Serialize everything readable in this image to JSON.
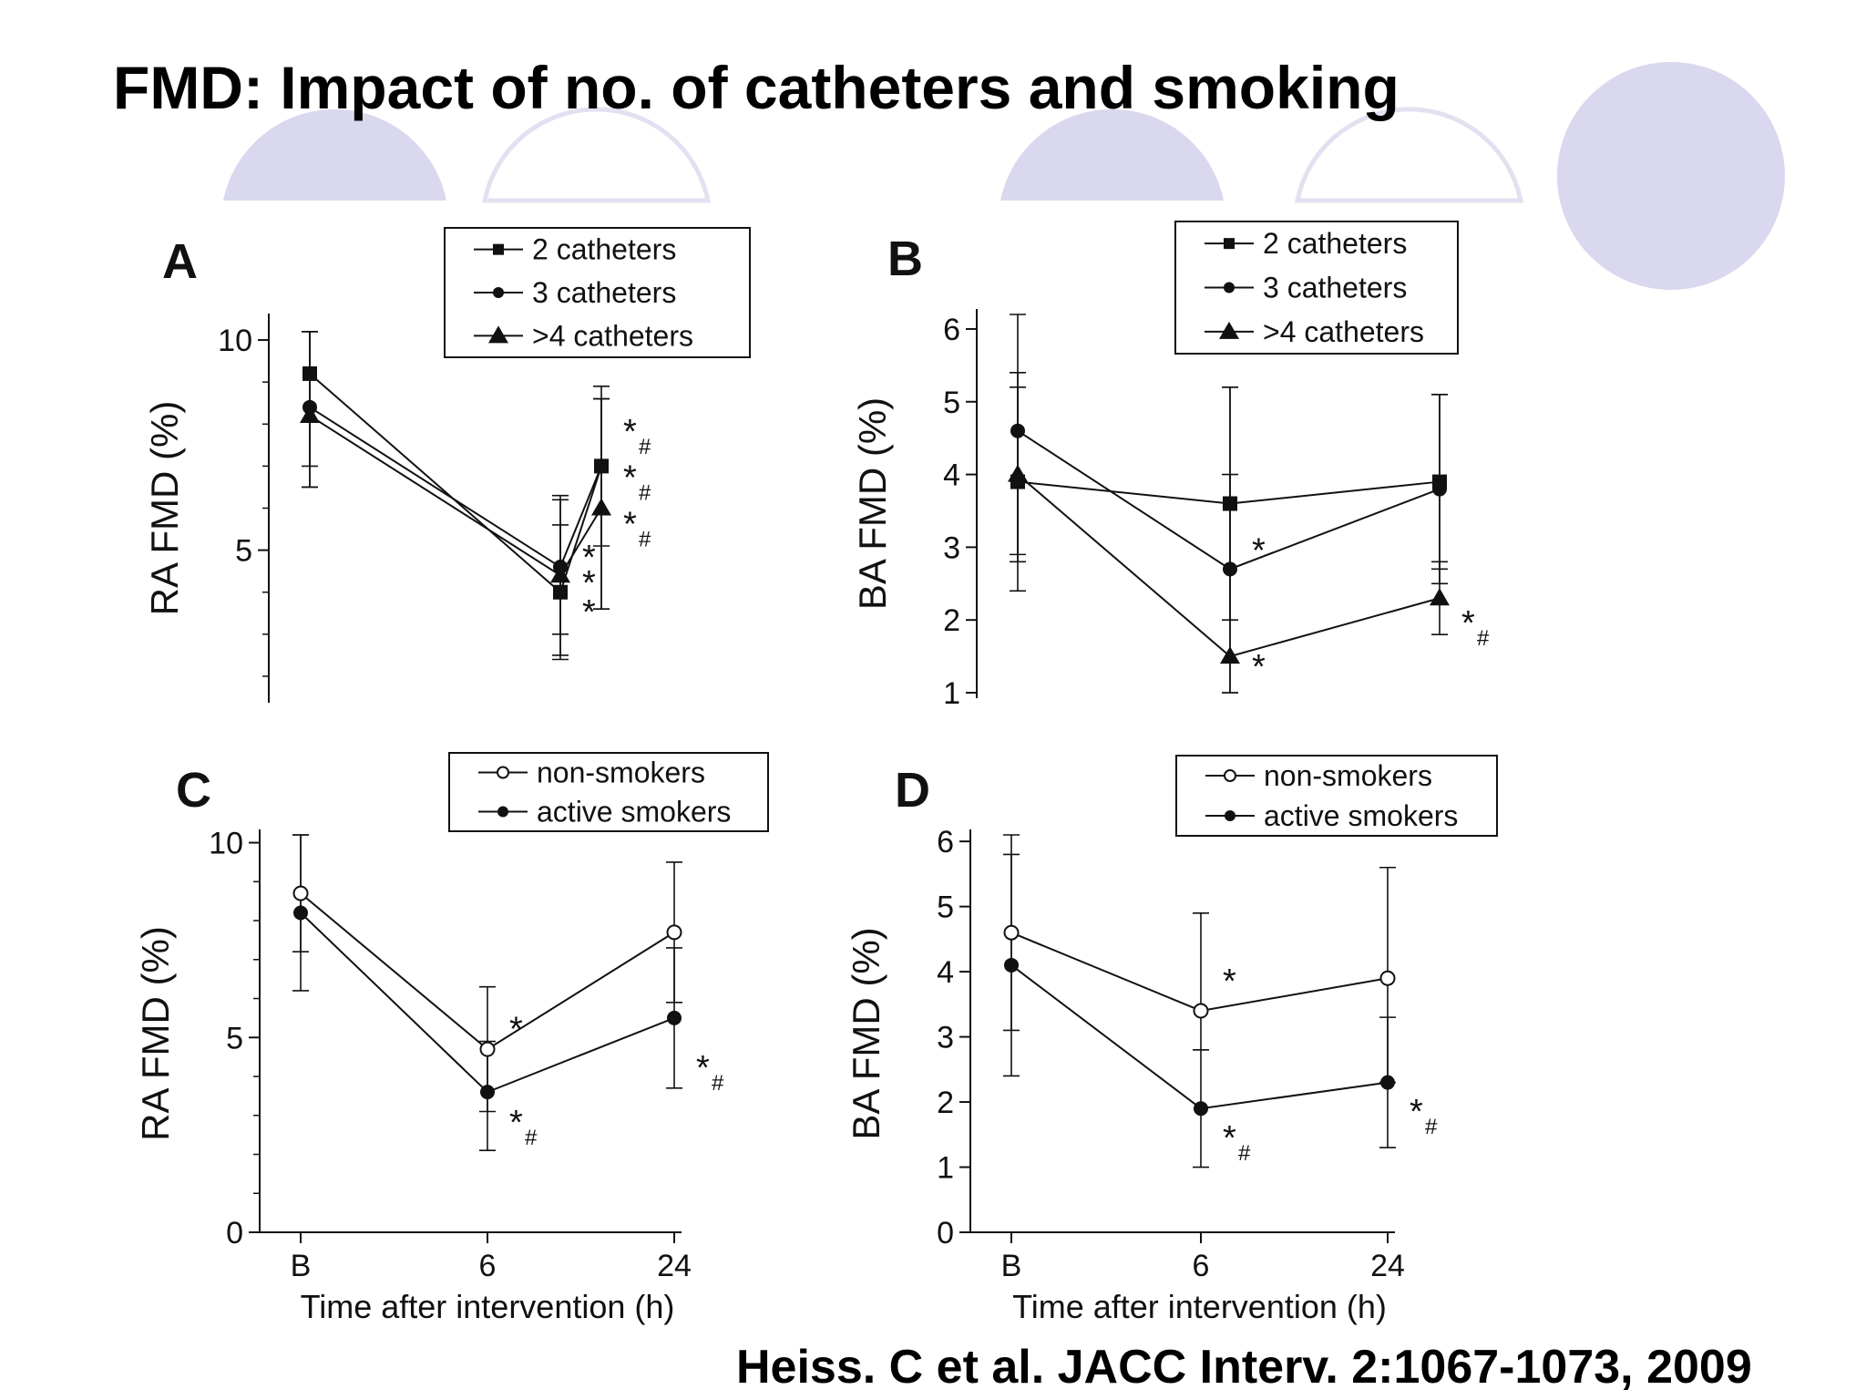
{
  "title": "FMD: Impact of no. of catheters and smoking",
  "citation": "Heiss. C et al. JACC Interv. 2:1067-1073, 2009",
  "colors": {
    "decor_circle": "#d9d8ee",
    "decor_outline": "#e5e4f3",
    "ink": "#111111"
  },
  "chart_data": [
    {
      "id": "A",
      "panel_label": "A",
      "type": "line",
      "xlabel": "",
      "ylabel": "RA FMD (%)",
      "categories": [
        "B",
        "6",
        "24"
      ],
      "show_x_ticklabels": false,
      "ylim": [
        1.5,
        10.5
      ],
      "yticks": [
        5,
        10
      ],
      "ytick_labels": [
        "5",
        "10"
      ],
      "minor_yticks": [
        2,
        3,
        4,
        6,
        7,
        8,
        9
      ],
      "legend": [
        "2 catheters",
        "3 catheters",
        ">4 catheters"
      ],
      "series": [
        {
          "name": "2 catheters",
          "marker": "square",
          "values": [
            9.2,
            4.0,
            7.0
          ],
          "err_low": [
            6.5,
            2.4,
            3.6
          ],
          "err_high": [
            10.2,
            6.2,
            8.9
          ]
        },
        {
          "name": "3 catheters",
          "marker": "circle",
          "values": [
            8.4,
            4.6,
            7.0
          ],
          "err_low": [
            7.0,
            3.0,
            5.1
          ],
          "err_high": [
            10.2,
            5.6,
            8.6
          ]
        },
        {
          "name": ">4 catheters",
          "marker": "triangle",
          "values": [
            8.2,
            4.4,
            6.0
          ],
          "err_low": [
            6.5,
            2.5,
            3.6
          ],
          "err_high": [
            10.2,
            6.3,
            8.6
          ]
        }
      ],
      "annotations": [
        {
          "x": "6",
          "y": 4.9,
          "text": "*"
        },
        {
          "x": "6",
          "y": 4.3,
          "text": "*"
        },
        {
          "x": "6",
          "y": 3.6,
          "text": "*"
        },
        {
          "x": "24",
          "y": 7.9,
          "text": "*",
          "sub": "#"
        },
        {
          "x": "24",
          "y": 6.8,
          "text": "*",
          "sub": "#"
        },
        {
          "x": "24",
          "y": 5.7,
          "text": "*",
          "sub": "#"
        }
      ]
    },
    {
      "id": "B",
      "panel_label": "B",
      "type": "line",
      "xlabel": "",
      "ylabel": "BA FMD (%)",
      "categories": [
        "B",
        "6",
        "24"
      ],
      "show_x_ticklabels": false,
      "ylim": [
        1,
        6.2
      ],
      "yticks": [
        1,
        2,
        3,
        4,
        5,
        6
      ],
      "ytick_labels": [
        "1",
        "2",
        "3",
        "4",
        "5",
        "6"
      ],
      "minor_yticks": [],
      "legend": [
        "2 catheters",
        "3 catheters",
        ">4 catheters"
      ],
      "series": [
        {
          "name": "2 catheters",
          "marker": "square",
          "values": [
            3.9,
            3.6,
            3.9
          ],
          "err_low": [
            2.8,
            2.0,
            2.7
          ],
          "err_high": [
            5.4,
            4.0,
            5.1
          ]
        },
        {
          "name": "3 catheters",
          "marker": "circle",
          "values": [
            4.6,
            2.7,
            3.8
          ],
          "err_low": [
            2.4,
            1.0,
            2.5
          ],
          "err_high": [
            6.2,
            5.2,
            5.1
          ]
        },
        {
          "name": ">4 catheters",
          "marker": "triangle",
          "values": [
            4.0,
            1.5,
            2.3
          ],
          "err_low": [
            2.9,
            1.0,
            1.8
          ],
          "err_high": [
            5.2,
            5.2,
            2.8
          ]
        }
      ],
      "annotations": [
        {
          "x": "6",
          "y": 3.0,
          "text": "*"
        },
        {
          "x": "6",
          "y": 1.4,
          "text": "*"
        },
        {
          "x": "24",
          "y": 2.0,
          "text": "*",
          "sub": "#"
        }
      ]
    },
    {
      "id": "C",
      "panel_label": "C",
      "type": "line",
      "xlabel": "Time after intervention (h)",
      "ylabel": "RA FMD (%)",
      "categories": [
        "B",
        "6",
        "24"
      ],
      "show_x_ticklabels": true,
      "ylim": [
        0,
        10.2
      ],
      "yticks": [
        0,
        5,
        10
      ],
      "ytick_labels": [
        "0",
        "5",
        "10"
      ],
      "minor_yticks": [
        1,
        2,
        3,
        4,
        6,
        7,
        8,
        9
      ],
      "legend": [
        "non-smokers",
        "active smokers"
      ],
      "series": [
        {
          "name": "non-smokers",
          "marker": "circle-open",
          "values": [
            8.7,
            4.7,
            7.7
          ],
          "err_low": [
            7.2,
            3.1,
            5.9
          ],
          "err_high": [
            10.2,
            6.3,
            9.5
          ]
        },
        {
          "name": "active smokers",
          "marker": "circle",
          "values": [
            8.2,
            3.6,
            5.5
          ],
          "err_low": [
            6.2,
            2.1,
            3.7
          ],
          "err_high": [
            10.2,
            4.9,
            7.3
          ]
        }
      ],
      "annotations": [
        {
          "x": "6",
          "y": 5.3,
          "text": "*"
        },
        {
          "x": "6",
          "y": 2.9,
          "text": "*",
          "sub": "#"
        },
        {
          "x": "24",
          "y": 4.3,
          "text": "*",
          "sub": "#"
        }
      ]
    },
    {
      "id": "D",
      "panel_label": "D",
      "type": "line",
      "xlabel": "Time after intervention (h)",
      "ylabel": "BA FMD (%)",
      "categories": [
        "B",
        "6",
        "24"
      ],
      "show_x_ticklabels": true,
      "ylim": [
        0,
        6.1
      ],
      "yticks": [
        0,
        1,
        2,
        3,
        4,
        5,
        6
      ],
      "ytick_labels": [
        "0",
        "1",
        "2",
        "3",
        "4",
        "5",
        "6"
      ],
      "minor_yticks": [],
      "legend": [
        "non-smokers",
        "active smokers"
      ],
      "series": [
        {
          "name": "non-smokers",
          "marker": "circle-open",
          "values": [
            4.6,
            3.4,
            3.9
          ],
          "err_low": [
            3.1,
            2.8,
            2.3
          ],
          "err_high": [
            6.1,
            4.9,
            5.6
          ]
        },
        {
          "name": "active smokers",
          "marker": "circle",
          "values": [
            4.1,
            1.9,
            2.3
          ],
          "err_low": [
            2.4,
            1.0,
            1.3
          ],
          "err_high": [
            5.8,
            2.8,
            3.3
          ]
        }
      ],
      "annotations": [
        {
          "x": "6",
          "y": 3.9,
          "text": "*"
        },
        {
          "x": "6",
          "y": 1.5,
          "text": "*",
          "sub": "#"
        },
        {
          "x": "24",
          "y": 1.9,
          "text": "*",
          "sub": "#"
        }
      ]
    }
  ]
}
